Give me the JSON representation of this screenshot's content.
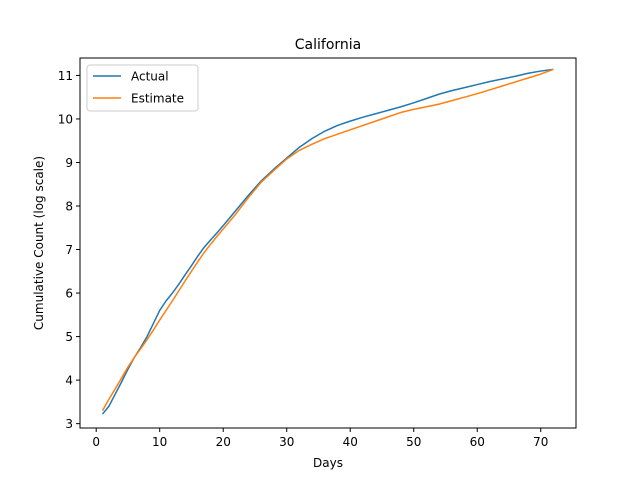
{
  "chart_data": {
    "type": "line",
    "title": "California",
    "xlabel": "Days",
    "ylabel": "Cumulative Count (log scale)",
    "xlim": [
      -2.55,
      75.55
    ],
    "ylim": [
      2.9,
      11.4
    ],
    "xticks": [
      0,
      10,
      20,
      30,
      40,
      50,
      60,
      70
    ],
    "yticks": [
      3,
      4,
      5,
      6,
      7,
      8,
      9,
      10,
      11
    ],
    "grid": false,
    "legend_position": "top-left",
    "series": [
      {
        "name": "Actual",
        "color": "#1f77b4",
        "x": [
          1,
          2,
          3,
          4,
          5,
          6,
          7,
          8,
          9,
          10,
          11,
          12,
          13,
          14,
          15,
          16,
          17,
          18,
          19,
          20,
          22,
          24,
          26,
          28,
          30,
          32,
          34,
          36,
          38,
          40,
          42,
          44,
          46,
          48,
          50,
          52,
          54,
          56,
          58,
          60,
          62,
          64,
          66,
          68,
          70,
          72
        ],
        "values": [
          3.22,
          3.4,
          3.68,
          3.96,
          4.25,
          4.52,
          4.75,
          5.0,
          5.3,
          5.6,
          5.82,
          6.0,
          6.2,
          6.42,
          6.63,
          6.85,
          7.05,
          7.22,
          7.38,
          7.55,
          7.9,
          8.25,
          8.58,
          8.85,
          9.1,
          9.35,
          9.55,
          9.72,
          9.85,
          9.95,
          10.04,
          10.12,
          10.2,
          10.28,
          10.37,
          10.47,
          10.57,
          10.65,
          10.72,
          10.79,
          10.86,
          10.92,
          10.98,
          11.05,
          11.1,
          11.14
        ]
      },
      {
        "name": "Estimate",
        "color": "#ff7f0e",
        "x": [
          1,
          2,
          3,
          4,
          5,
          6,
          7,
          8,
          9,
          10,
          11,
          12,
          13,
          14,
          15,
          16,
          17,
          18,
          19,
          20,
          22,
          24,
          26,
          28,
          30,
          32,
          34,
          36,
          38,
          40,
          42,
          44,
          46,
          48,
          50,
          52,
          54,
          56,
          58,
          60,
          62,
          64,
          66,
          68,
          70,
          72
        ],
        "values": [
          3.3,
          3.56,
          3.8,
          4.05,
          4.3,
          4.52,
          4.72,
          4.93,
          5.15,
          5.38,
          5.6,
          5.82,
          6.05,
          6.28,
          6.5,
          6.72,
          6.93,
          7.12,
          7.3,
          7.47,
          7.82,
          8.2,
          8.55,
          8.82,
          9.08,
          9.28,
          9.42,
          9.55,
          9.65,
          9.75,
          9.85,
          9.95,
          10.05,
          10.15,
          10.22,
          10.28,
          10.34,
          10.42,
          10.5,
          10.58,
          10.67,
          10.76,
          10.85,
          10.94,
          11.03,
          11.14
        ]
      }
    ]
  }
}
